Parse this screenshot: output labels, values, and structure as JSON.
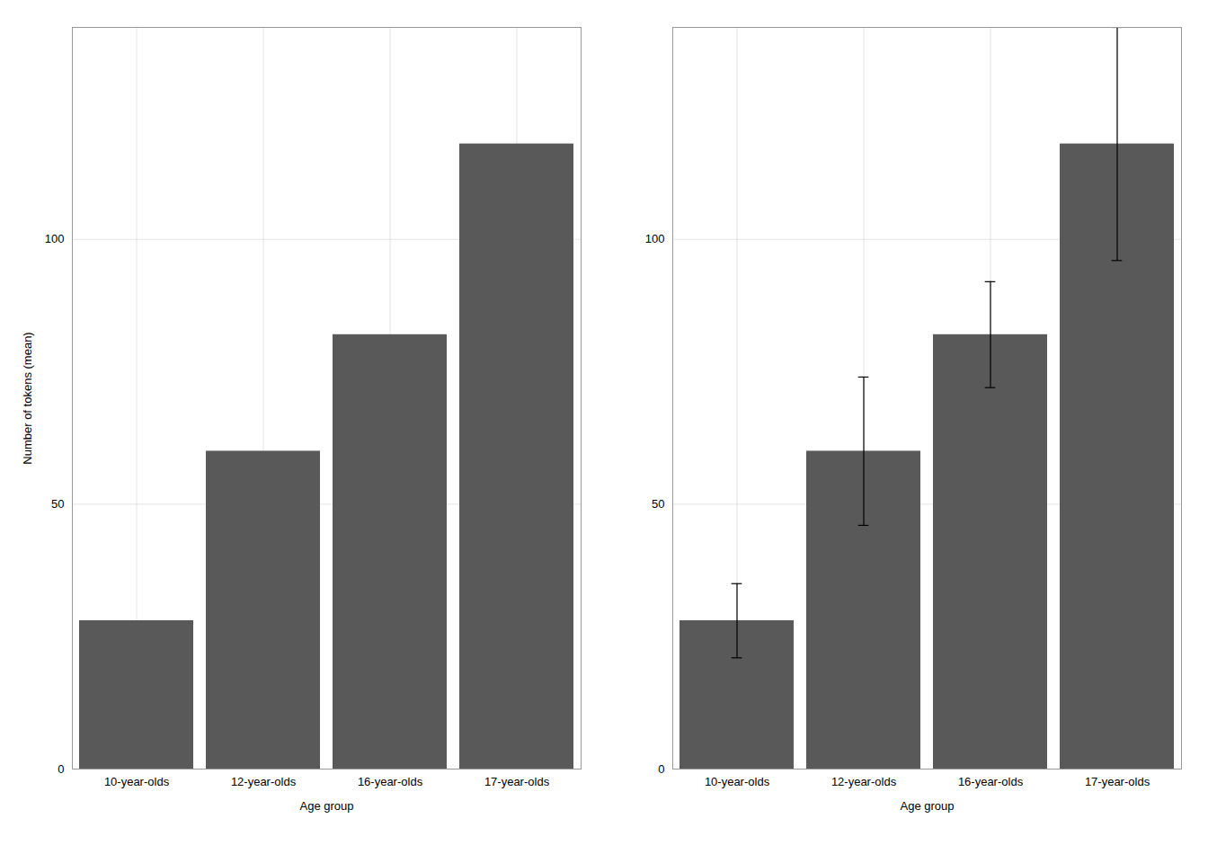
{
  "chart_data": [
    {
      "type": "bar",
      "categories": [
        "10-year-olds",
        "12-year-olds",
        "16-year-olds",
        "17-year-olds"
      ],
      "values": [
        28,
        60,
        82,
        118
      ],
      "color": "#595959",
      "xlabel": "Age group",
      "ylabel": "Number of tokens (mean)",
      "ylim": [
        0,
        140
      ],
      "yticks": [
        0,
        50,
        100
      ],
      "grid": true
    },
    {
      "type": "bar",
      "categories": [
        "10-year-olds",
        "12-year-olds",
        "16-year-olds",
        "17-year-olds"
      ],
      "values": [
        28,
        60,
        82,
        118
      ],
      "errors": [
        7,
        14,
        10,
        22
      ],
      "color": "#595959",
      "xlabel": "Age group",
      "ylim": [
        0,
        140
      ],
      "yticks": [
        0,
        50,
        100
      ],
      "grid": true
    }
  ]
}
